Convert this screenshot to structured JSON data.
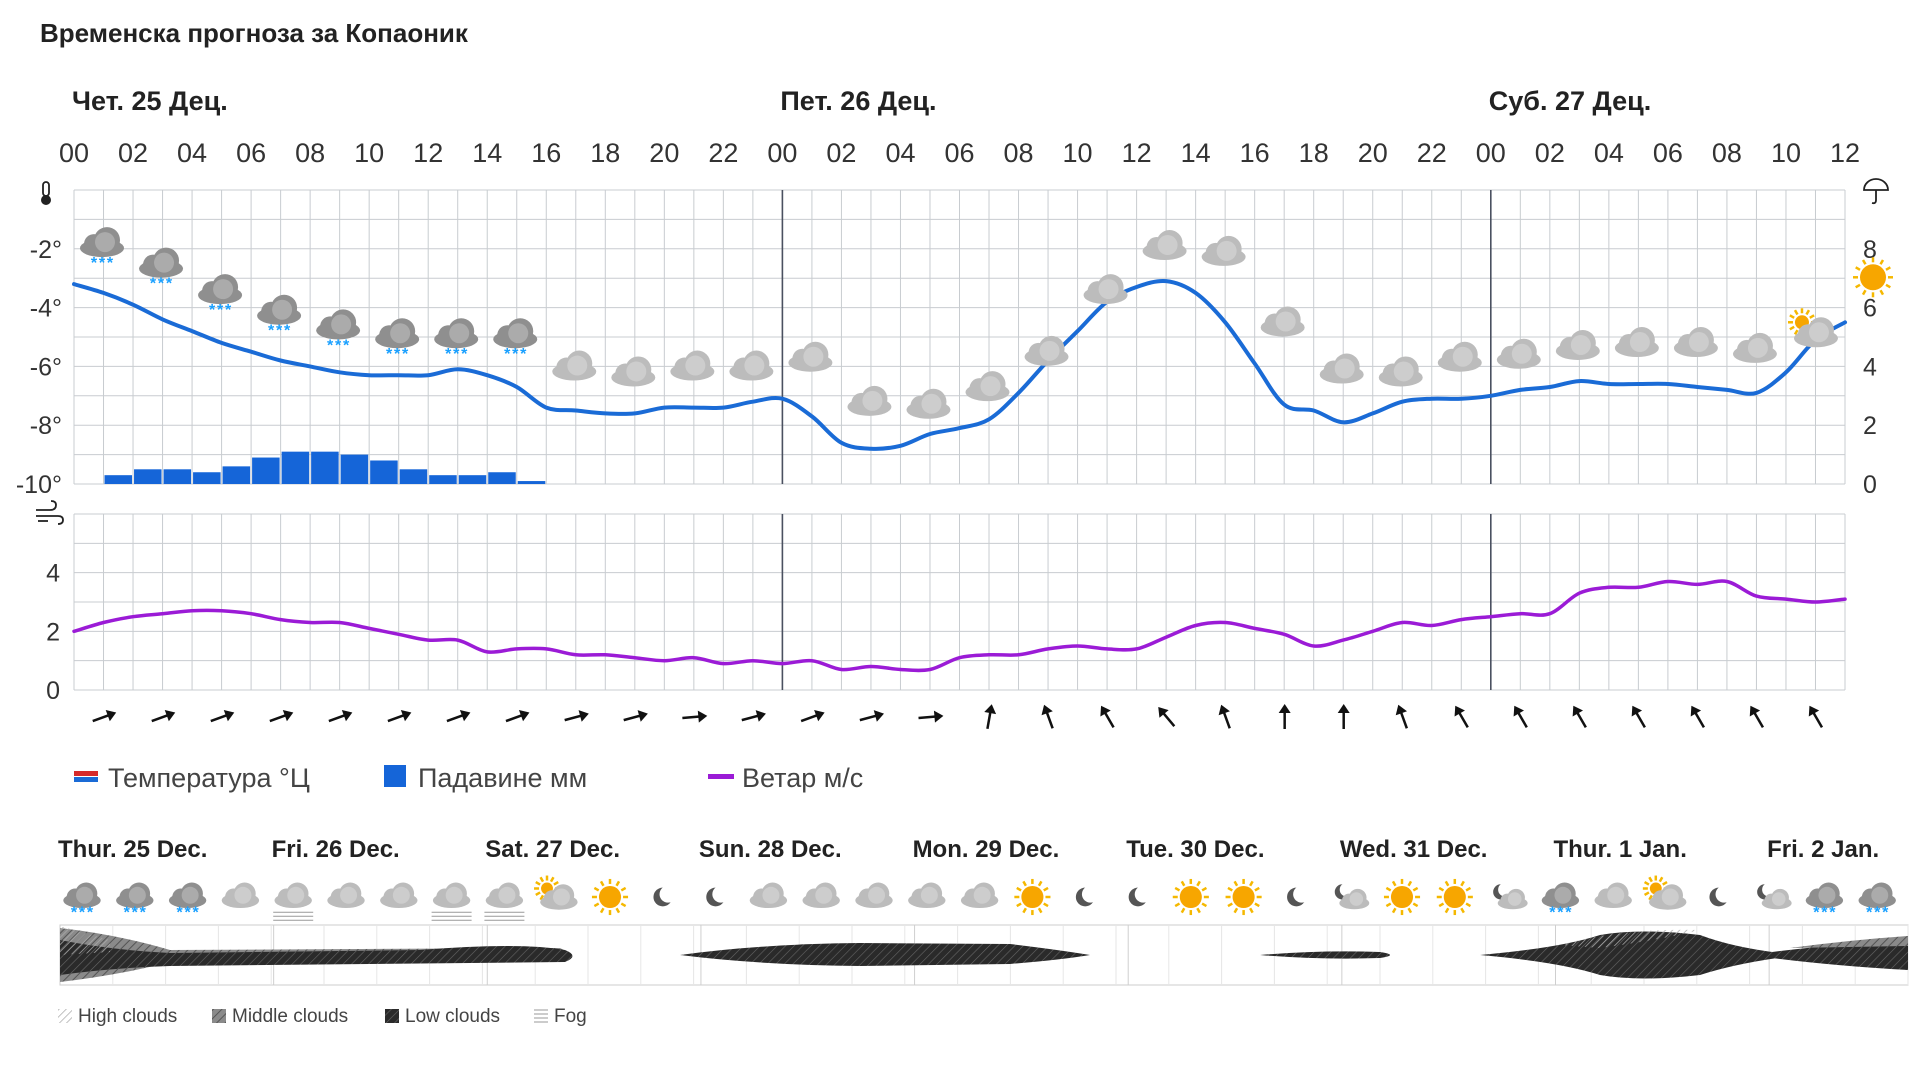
{
  "title": "Временска прогноза за Копаоник",
  "chart_data": {
    "type": "line",
    "days": [
      {
        "label": "Чет. 25 Дец.",
        "hour": 0
      },
      {
        "label": "Пет. 26 Дец.",
        "hour": 24
      },
      {
        "label": "Суб. 27 Дец.",
        "hour": 48
      }
    ],
    "hour_labels": [
      "00",
      "02",
      "04",
      "06",
      "08",
      "10",
      "12",
      "14",
      "16",
      "18",
      "20",
      "22",
      "00",
      "02",
      "04",
      "06",
      "08",
      "10",
      "12",
      "14",
      "16",
      "18",
      "20",
      "22",
      "00",
      "02",
      "04",
      "06",
      "08",
      "10",
      "12"
    ],
    "hour_range": [
      0,
      60
    ],
    "temp_axis": {
      "ylim": [
        -10,
        0
      ],
      "ticks": [
        "-2°",
        "-4°",
        "-6°",
        "-8°",
        "-10°"
      ],
      "tick_values": [
        -2,
        -4,
        -6,
        -8,
        -10
      ]
    },
    "precip_axis": {
      "ylim": [
        0,
        10
      ],
      "ticks": [
        "8",
        "6",
        "4",
        "2",
        "0"
      ],
      "tick_values": [
        8,
        6,
        4,
        2,
        0
      ]
    },
    "wind_axis": {
      "ylim": [
        0,
        6
      ],
      "ticks": [
        "4",
        "2",
        "0"
      ],
      "tick_values": [
        4,
        2,
        0
      ]
    },
    "temperature": {
      "name": "Температура °Ц",
      "hours": [
        0,
        1,
        2,
        3,
        4,
        5,
        6,
        7,
        8,
        9,
        10,
        11,
        12,
        13,
        14,
        15,
        16,
        17,
        18,
        19,
        20,
        21,
        22,
        23,
        24,
        25,
        26,
        27,
        28,
        29,
        30,
        31,
        32,
        33,
        34,
        35,
        36,
        37,
        38,
        39,
        40,
        41,
        42,
        43,
        44,
        45,
        46,
        47,
        48,
        49,
        50,
        51,
        52,
        53,
        54,
        55,
        56,
        57,
        58,
        59,
        60
      ],
      "values": [
        -3.2,
        -3.5,
        -3.9,
        -4.4,
        -4.8,
        -5.2,
        -5.5,
        -5.8,
        -6.0,
        -6.2,
        -6.3,
        -6.3,
        -6.3,
        -6.1,
        -6.3,
        -6.7,
        -7.4,
        -7.5,
        -7.6,
        -7.6,
        -7.4,
        -7.4,
        -7.4,
        -7.2,
        -7.1,
        -7.7,
        -8.6,
        -8.8,
        -8.7,
        -8.3,
        -8.1,
        -7.8,
        -6.9,
        -5.8,
        -4.8,
        -3.8,
        -3.3,
        -3.1,
        -3.5,
        -4.5,
        -5.9,
        -7.3,
        -7.5,
        -7.9,
        -7.6,
        -7.2,
        -7.1,
        -7.1,
        -7.0,
        -6.8,
        -6.7,
        -6.5,
        -6.6,
        -6.6,
        -6.6,
        -6.7,
        -6.8,
        -6.9,
        -6.2,
        -5.1,
        -4.5
      ],
      "color": "#1a6bd6"
    },
    "precipitation": {
      "name": "Падавине мм",
      "hours": [
        1,
        2,
        3,
        4,
        5,
        6,
        7,
        8,
        9,
        10,
        11,
        12,
        13,
        14,
        15
      ],
      "values": [
        0.3,
        0.5,
        0.5,
        0.4,
        0.6,
        0.9,
        1.1,
        1.1,
        1.0,
        0.8,
        0.5,
        0.3,
        0.3,
        0.4,
        0.1
      ],
      "color": "#1565d8"
    },
    "wind": {
      "name": "Ветар м/с",
      "hours": [
        0,
        1,
        2,
        3,
        4,
        5,
        6,
        7,
        8,
        9,
        10,
        11,
        12,
        13,
        14,
        15,
        16,
        17,
        18,
        19,
        20,
        21,
        22,
        23,
        24,
        25,
        26,
        27,
        28,
        29,
        30,
        31,
        32,
        33,
        34,
        35,
        36,
        37,
        38,
        39,
        40,
        41,
        42,
        43,
        44,
        45,
        46,
        47,
        48,
        49,
        50,
        51,
        52,
        53,
        54,
        55,
        56,
        57,
        58,
        59,
        60
      ],
      "values": [
        2.0,
        2.3,
        2.5,
        2.6,
        2.7,
        2.7,
        2.6,
        2.4,
        2.3,
        2.3,
        2.1,
        1.9,
        1.7,
        1.7,
        1.3,
        1.4,
        1.4,
        1.2,
        1.2,
        1.1,
        1.0,
        1.1,
        0.9,
        1.0,
        0.9,
        1.0,
        0.7,
        0.8,
        0.7,
        0.7,
        1.1,
        1.2,
        1.2,
        1.4,
        1.5,
        1.4,
        1.4,
        1.8,
        2.2,
        2.3,
        2.1,
        1.9,
        1.5,
        1.7,
        2.0,
        2.3,
        2.2,
        2.4,
        2.5,
        2.6,
        2.6,
        3.3,
        3.5,
        3.5,
        3.7,
        3.6,
        3.7,
        3.2,
        3.1,
        3.0,
        3.1
      ],
      "color": "#9b1bd6"
    },
    "wind_directions_deg": [
      70,
      70,
      70,
      70,
      70,
      70,
      70,
      70,
      75,
      75,
      85,
      75,
      70,
      75,
      85,
      10,
      340,
      330,
      320,
      340,
      0,
      0,
      340,
      330,
      330,
      330,
      330,
      330,
      330,
      330
    ],
    "weather_icons": [
      "snow",
      "snow",
      "snow",
      "snow",
      "snow",
      "snow",
      "snow",
      "snow",
      "cloud",
      "cloud",
      "cloud",
      "cloud",
      "cloud",
      "cloud",
      "cloud",
      "cloud",
      "cloud",
      "cloud",
      "cloud",
      "cloud",
      "cloud",
      "cloud",
      "cloud",
      "cloud",
      "cloud",
      "cloud",
      "cloud",
      "cloud",
      "cloud",
      "partly-sunny",
      "sun"
    ],
    "legend": [
      "Температура °Ц",
      "Падавине мм",
      "Ветар м/с"
    ]
  },
  "forecast10": {
    "days": [
      "Thur. 25 Dec.",
      "Fri. 26 Dec.",
      "Sat. 27 Dec.",
      "Sun. 28 Dec.",
      "Mon. 29 Dec.",
      "Tue. 30 Dec.",
      "Wed. 31 Dec.",
      "Thur. 1 Jan.",
      "Fri. 2 Jan."
    ],
    "icons": [
      "snow",
      "snow",
      "snow",
      "cloud",
      "fog-cloud",
      "cloud",
      "cloud",
      "fog-cloud",
      "fog-cloud",
      "partly-sunny",
      "sun",
      "moon",
      "moon",
      "cloud",
      "cloud",
      "cloud",
      "cloud",
      "cloud",
      "sun",
      "moon",
      "moon",
      "sun",
      "sun",
      "moon",
      "moon-cloud",
      "sun",
      "sun",
      "moon-cloud",
      "snow",
      "cloud",
      "partly-sunny",
      "moon",
      "moon-cloud",
      "snow",
      "snow"
    ],
    "cloud_legend": [
      "High clouds",
      "Middle clouds",
      "Low clouds",
      "Fog"
    ]
  },
  "colors": {
    "temperature": "#1a6bd6",
    "precipitation": "#1565d8",
    "wind": "#9b1bd6",
    "grid": "#c8ccd0",
    "text": "#222222"
  }
}
